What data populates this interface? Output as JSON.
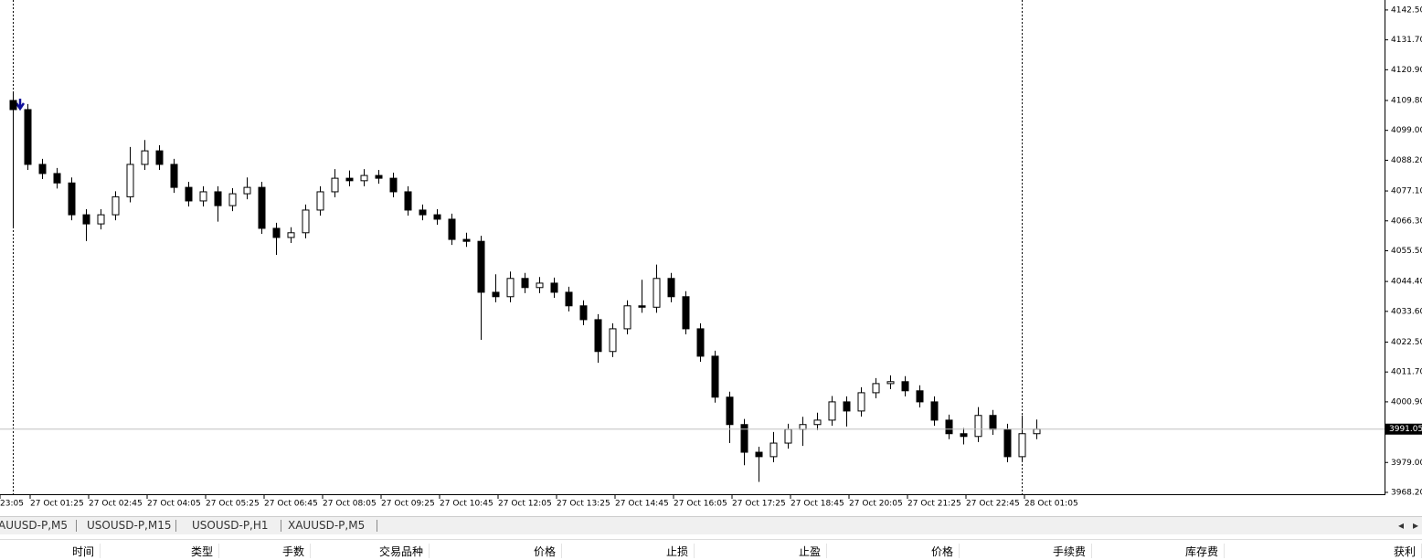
{
  "chart_data": {
    "type": "candlestick",
    "open": [
      4109.8,
      4106.5,
      4086.7,
      4083.4,
      4080.0,
      4068.5,
      4065.2,
      4068.5,
      4075.0,
      4086.7,
      4091.6,
      4086.7,
      4078.4,
      4073.5,
      4076.8,
      4071.8,
      4076.1,
      4078.4,
      4063.6,
      4060.3,
      4062.0,
      4070.2,
      4076.8,
      4081.7,
      4080.8,
      4082.7,
      4081.7,
      4076.8,
      4070.2,
      4068.5,
      4066.9,
      4059.6,
      4058.9,
      4040.5,
      4038.9,
      4045.5,
      4042.2,
      4043.8,
      4040.5,
      4035.6,
      4030.6,
      4019.1,
      4027.3,
      4035.6,
      4035.1,
      4045.5,
      4038.9,
      4027.3,
      4017.4,
      4002.6,
      3992.7,
      3982.7,
      3981.1,
      3986.0,
      3991.0,
      3992.7,
      3994.3,
      4000.9,
      3997.6,
      4004.2,
      4007.5,
      4008.2,
      4004.9,
      4000.9,
      3994.3,
      3989.4,
      3988.4,
      3996.0,
      3991.0,
      3981.1,
      3989.4
    ],
    "high": [
      4112.5,
      4108.5,
      4088.7,
      4085.4,
      4082.0,
      4070.5,
      4070.5,
      4077.0,
      4093.0,
      4095.5,
      4093.6,
      4088.7,
      4080.4,
      4078.8,
      4078.8,
      4078.1,
      4082.0,
      4080.4,
      4065.6,
      4064.0,
      4072.2,
      4078.8,
      4085.0,
      4084.5,
      4085.0,
      4084.7,
      4083.7,
      4078.8,
      4072.2,
      4070.5,
      4068.9,
      4062.0,
      4060.9,
      4047.0,
      4048.0,
      4047.5,
      4046.0,
      4045.8,
      4042.5,
      4037.6,
      4032.6,
      4029.3,
      4037.6,
      4045.0,
      4050.5,
      4047.5,
      4040.9,
      4029.3,
      4019.4,
      4004.6,
      3994.7,
      3984.7,
      3990.0,
      3993.0,
      3995.5,
      3997.0,
      4003.0,
      4002.9,
      4006.2,
      4009.5,
      4010.5,
      4010.2,
      4006.9,
      4002.9,
      3996.3,
      3991.4,
      3999.0,
      3998.0,
      3993.0,
      3996.0,
      3994.5
    ],
    "low": [
      4063.6,
      4084.7,
      4081.4,
      4078.0,
      4066.5,
      4059.0,
      4063.2,
      4066.5,
      4073.0,
      4084.7,
      4084.7,
      4076.4,
      4071.5,
      4071.5,
      4066.0,
      4069.8,
      4074.1,
      4061.6,
      4054.0,
      4058.3,
      4060.0,
      4068.2,
      4074.8,
      4078.8,
      4078.8,
      4079.7,
      4074.8,
      4068.2,
      4066.5,
      4064.9,
      4057.6,
      4056.9,
      4023.3,
      4036.9,
      4036.9,
      4040.2,
      4040.2,
      4038.5,
      4033.6,
      4028.6,
      4015.0,
      4017.1,
      4025.3,
      4033.1,
      4033.1,
      4036.9,
      4025.3,
      4015.4,
      4000.6,
      3986.0,
      3978.0,
      3972.0,
      3979.1,
      3984.0,
      3985.0,
      3990.7,
      3992.3,
      3992.0,
      3995.6,
      4002.2,
      4005.5,
      4002.9,
      3998.9,
      3992.3,
      3987.4,
      3985.5,
      3986.4,
      3989.0,
      3979.1,
      3979.1,
      3987.4
    ],
    "close": [
      4106.5,
      4086.7,
      4083.4,
      4080.0,
      4068.5,
      4065.2,
      4068.5,
      4075.0,
      4086.7,
      4091.6,
      4086.7,
      4078.4,
      4073.5,
      4076.8,
      4071.8,
      4076.1,
      4078.4,
      4063.6,
      4060.3,
      4062.0,
      4070.2,
      4076.8,
      4081.7,
      4080.8,
      4082.7,
      4081.7,
      4076.8,
      4070.2,
      4068.5,
      4066.9,
      4059.6,
      4058.9,
      4040.5,
      4038.9,
      4045.5,
      4042.2,
      4043.8,
      4040.5,
      4035.6,
      4030.6,
      4019.1,
      4027.3,
      4035.6,
      4035.1,
      4045.5,
      4038.9,
      4027.3,
      4017.4,
      4002.6,
      3992.7,
      3982.7,
      3981.1,
      3986.0,
      3991.0,
      3992.7,
      3994.3,
      4000.9,
      3997.6,
      4004.2,
      4007.5,
      4008.2,
      4004.9,
      4000.9,
      3994.3,
      3989.4,
      3988.4,
      3996.0,
      3991.0,
      3981.1,
      3989.4,
      3991.05
    ],
    "ylim": [
      3967.2,
      4146.1
    ],
    "yticks": [
      {
        "value": 4142.5,
        "label": "4142.50"
      },
      {
        "value": 4131.7,
        "label": "4131.70"
      },
      {
        "value": 4120.9,
        "label": "4120.90"
      },
      {
        "value": 4109.8,
        "label": "4109.80"
      },
      {
        "value": 4099.0,
        "label": "4099.00"
      },
      {
        "value": 4088.2,
        "label": "4088.20"
      },
      {
        "value": 4077.1,
        "label": "4077.10"
      },
      {
        "value": 4066.3,
        "label": "4066.30"
      },
      {
        "value": 4055.5,
        "label": "4055.50"
      },
      {
        "value": 4044.4,
        "label": "4044.40"
      },
      {
        "value": 4033.6,
        "label": "4033.60"
      },
      {
        "value": 4022.5,
        "label": "4022.50"
      },
      {
        "value": 4011.7,
        "label": "4011.70"
      },
      {
        "value": 4000.9,
        "label": "4000.90"
      },
      {
        "value": 3979.0,
        "label": "3979.00"
      },
      {
        "value": 3968.2,
        "label": "3968.20"
      }
    ],
    "x_labels": [
      "23:05",
      "27 Oct 01:25",
      "27 Oct 02:45",
      "27 Oct 04:05",
      "27 Oct 05:25",
      "27 Oct 06:45",
      "27 Oct 08:05",
      "27 Oct 09:25",
      "27 Oct 10:45",
      "27 Oct 12:05",
      "27 Oct 13:25",
      "27 Oct 14:45",
      "27 Oct 16:05",
      "27 Oct 17:25",
      "27 Oct 18:45",
      "27 Oct 20:05",
      "27 Oct 21:25",
      "27 Oct 22:45",
      "28 Oct 01:05"
    ],
    "current_price": {
      "value": 3991.05,
      "label": "3991.05"
    }
  },
  "tabs": [
    "AUUSD-P,M5",
    "USOUSD-P,M15",
    "USOUSD-P,H1",
    "XAUUSD-P,M5"
  ],
  "columns": [
    "时间",
    "类型",
    "手数",
    "交易品种",
    "价格",
    "止损",
    "止盈",
    "价格",
    "手续费",
    "库存费",
    "获利"
  ]
}
